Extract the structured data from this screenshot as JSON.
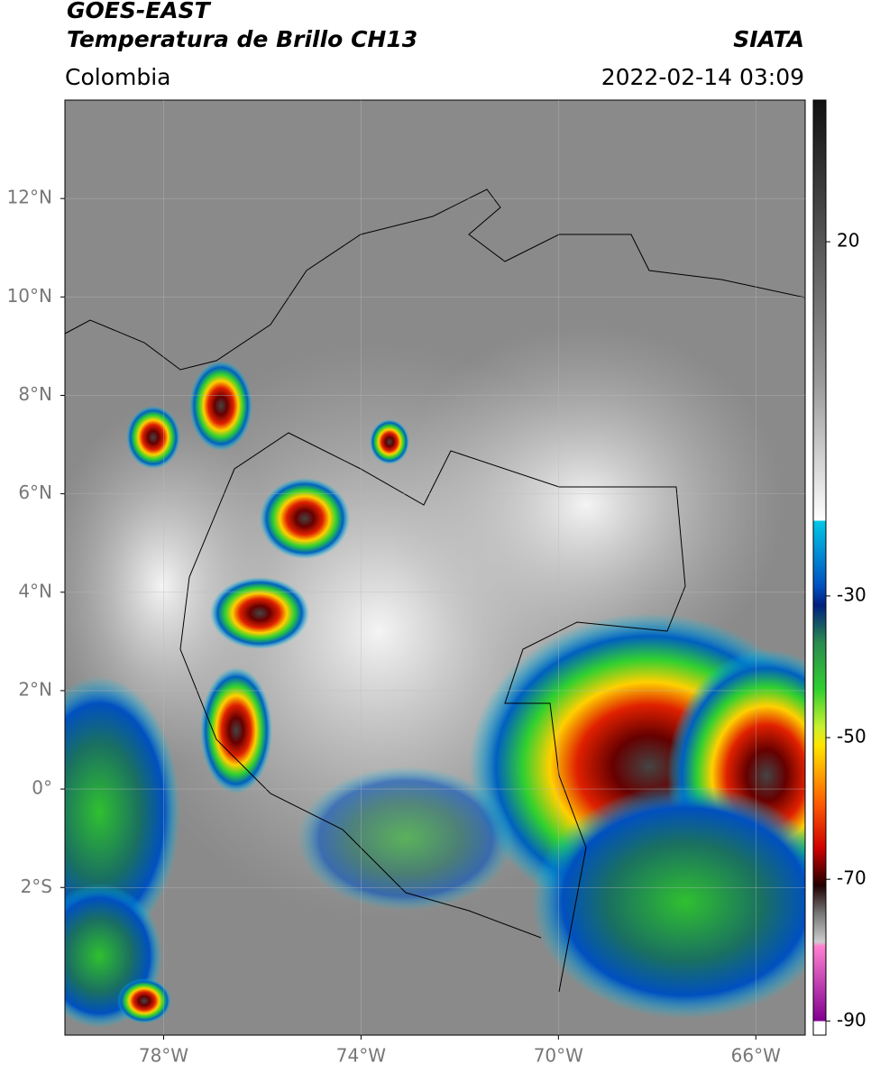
{
  "header": {
    "satellite": "GOES-EAST",
    "product": "Temperatura de Brillo CH13",
    "region": "Colombia",
    "source": "SIATA",
    "datetime": "2022-02-14 03:09"
  },
  "map": {
    "lon_range": [
      -80,
      -65
    ],
    "lat_range": [
      -5,
      14
    ],
    "lon_ticks": [
      {
        "value": -78,
        "label": "78°W"
      },
      {
        "value": -74,
        "label": "74°W"
      },
      {
        "value": -70,
        "label": "70°W"
      },
      {
        "value": -66,
        "label": "66°W"
      }
    ],
    "lat_ticks": [
      {
        "value": 12,
        "label": "12°N"
      },
      {
        "value": 10,
        "label": "10°N"
      },
      {
        "value": 8,
        "label": "8°N"
      },
      {
        "value": 6,
        "label": "6°N"
      },
      {
        "value": 4,
        "label": "4°N"
      },
      {
        "value": 2,
        "label": "2°N"
      },
      {
        "value": 0,
        "label": "0°"
      },
      {
        "value": -2,
        "label": "2°S"
      }
    ]
  },
  "colorbar": {
    "range": [
      -92,
      40
    ],
    "ticks": [
      20,
      -30,
      -50,
      -70,
      -90
    ]
  }
}
